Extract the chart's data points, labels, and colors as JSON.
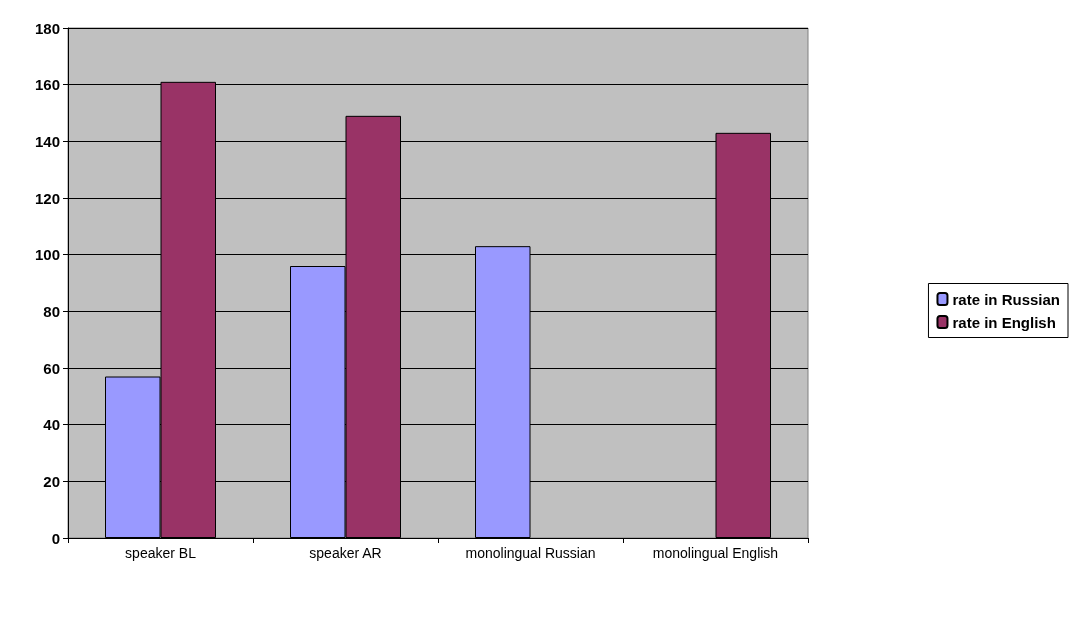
{
  "chart_data": {
    "type": "bar",
    "categories": [
      "speaker BL",
      "speaker AR",
      "monolingual Russian",
      "monolingual English"
    ],
    "series": [
      {
        "name": "rate in Russian",
        "color": "#9999ff",
        "values": [
          57,
          96,
          103,
          null
        ]
      },
      {
        "name": "rate in English",
        "color": "#993366",
        "values": [
          161,
          149,
          null,
          143
        ]
      }
    ],
    "ylim": [
      0,
      180
    ],
    "yticks": [
      0,
      20,
      40,
      60,
      80,
      100,
      120,
      140,
      160,
      180
    ],
    "grid": "y",
    "legend": "right"
  }
}
